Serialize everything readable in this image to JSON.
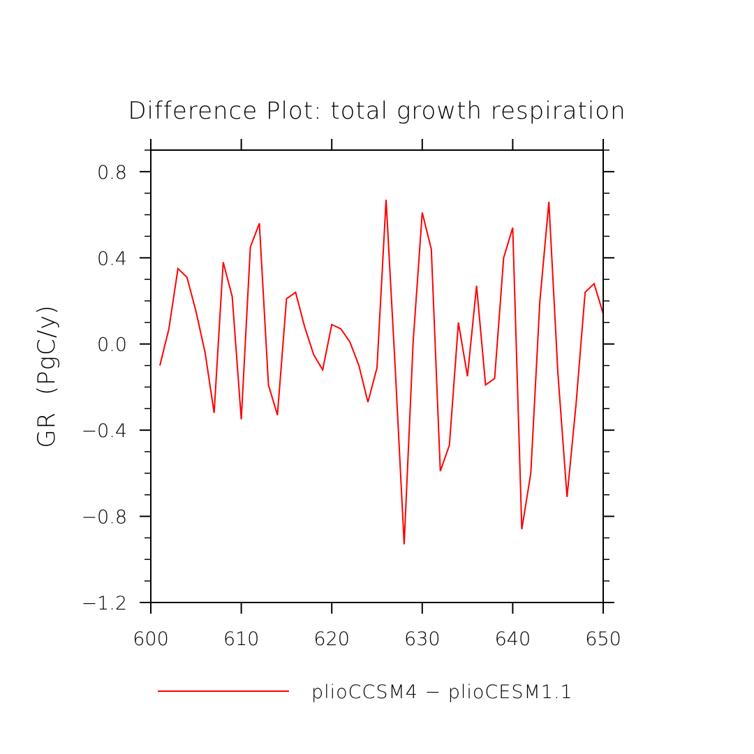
{
  "chart_data": {
    "type": "line",
    "title": "Difference Plot: total growth respiration",
    "xlabel": "",
    "ylabel": "GR  (PgC/y)",
    "xlim": [
      600,
      650
    ],
    "ylim": [
      -1.2,
      0.9
    ],
    "x_ticks": [
      600,
      610,
      620,
      630,
      640,
      650
    ],
    "x_tick_labels": [
      "600",
      "610",
      "620",
      "630",
      "640",
      "650"
    ],
    "y_ticks": [
      -1.2,
      -0.8,
      -0.4,
      0.0,
      0.4,
      0.8
    ],
    "y_tick_labels": [
      "−1.2",
      "−0.8",
      "−0.4",
      "0.0",
      "0.4",
      "0.8"
    ],
    "grid": false,
    "legend_position": "bottom",
    "series": [
      {
        "name": "plioCCSM4 − plioCESM1.1",
        "color": "#ff0000",
        "x": [
          601,
          602,
          603,
          604,
          605,
          606,
          607,
          608,
          609,
          610,
          611,
          612,
          613,
          614,
          615,
          616,
          617,
          618,
          619,
          620,
          621,
          622,
          623,
          624,
          625,
          626,
          627,
          628,
          629,
          630,
          631,
          632,
          633,
          634,
          635,
          636,
          637,
          638,
          639,
          640,
          641,
          642,
          643,
          644,
          645,
          646,
          647,
          648,
          649,
          650
        ],
        "y": [
          -0.1,
          0.07,
          0.35,
          0.31,
          0.15,
          -0.04,
          -0.32,
          0.38,
          0.22,
          -0.35,
          0.45,
          0.56,
          -0.19,
          -0.33,
          0.21,
          0.24,
          0.08,
          -0.05,
          -0.12,
          0.09,
          0.07,
          0.01,
          -0.1,
          -0.27,
          -0.11,
          0.67,
          -0.1,
          -0.93,
          0.01,
          0.61,
          0.44,
          -0.59,
          -0.47,
          0.1,
          -0.15,
          0.27,
          -0.19,
          -0.16,
          0.4,
          0.54,
          -0.86,
          -0.6,
          0.2,
          0.66,
          -0.14,
          -0.71,
          -0.28,
          0.24,
          0.28,
          0.14
        ]
      }
    ]
  }
}
